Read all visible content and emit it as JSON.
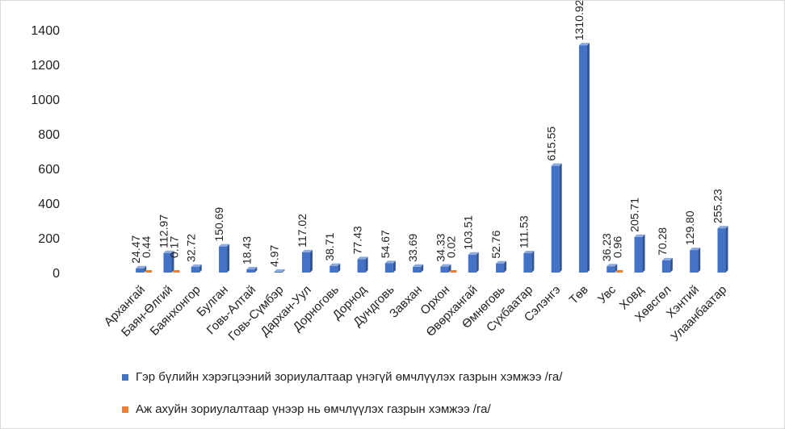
{
  "chart_data": {
    "type": "bar",
    "categories": [
      "Архангай",
      "Баян-Өлгий",
      "Баянхонгор",
      "Булган",
      "Говь-Алтай",
      "Говь-Сүмбэр",
      "Дархан-Уул",
      "Дорноговь",
      "Дорнод",
      "Дундговь",
      "Завхан",
      "Орхон",
      "Өвөрхангай",
      "Өмнөговь",
      "Сүхбаатар",
      "Сэлэнгэ",
      "Төв",
      "Увс",
      "Ховд",
      "Хөвсгөл",
      "Хэнтий",
      "Улаанбаатар"
    ],
    "series": [
      {
        "name": "Гэр бүлийн  хэрэгцээний зориулалтаар  үнэгүй өмчлүүлэх газрын хэмжээ /га/",
        "color": "#4472c4",
        "values": [
          24.47,
          112.97,
          32.72,
          150.69,
          18.43,
          4.97,
          117.02,
          38.71,
          77.43,
          54.67,
          33.69,
          34.33,
          103.51,
          52.76,
          111.53,
          615.55,
          1310.92,
          36.23,
          205.71,
          70.28,
          129.8,
          255.23
        ],
        "labels": [
          "24.47",
          "112.97",
          "32.72",
          "150.69",
          "18.43",
          "4.97",
          "117.02",
          "38.71",
          "77.43",
          "54.67",
          "33.69",
          "34.33",
          "103.51",
          "52.76",
          "111.53",
          "615.55",
          "1310.92",
          "36.23",
          "205.71",
          "70.28",
          "129.80",
          "255.23"
        ]
      },
      {
        "name": "Аж ахуйн  зориулалтаар  үнээр нь өмчлүүлэх газрын хэмжээ /га/",
        "color": "#ed7d31",
        "values": [
          0.44,
          0.17,
          null,
          null,
          null,
          null,
          null,
          null,
          null,
          null,
          null,
          0.02,
          null,
          null,
          null,
          null,
          null,
          0.96,
          null,
          null,
          null,
          null
        ],
        "labels": [
          "0.44",
          "0.17",
          null,
          null,
          null,
          null,
          null,
          null,
          null,
          null,
          null,
          "0.02",
          null,
          null,
          null,
          null,
          null,
          "0.96",
          null,
          null,
          null,
          null
        ]
      }
    ],
    "yticks": [
      "0",
      "200",
      "400",
      "600",
      "800",
      "1000",
      "1200",
      "1400"
    ],
    "ylim": [
      0,
      1400
    ],
    "grid": false,
    "legend_position": "bottom"
  }
}
